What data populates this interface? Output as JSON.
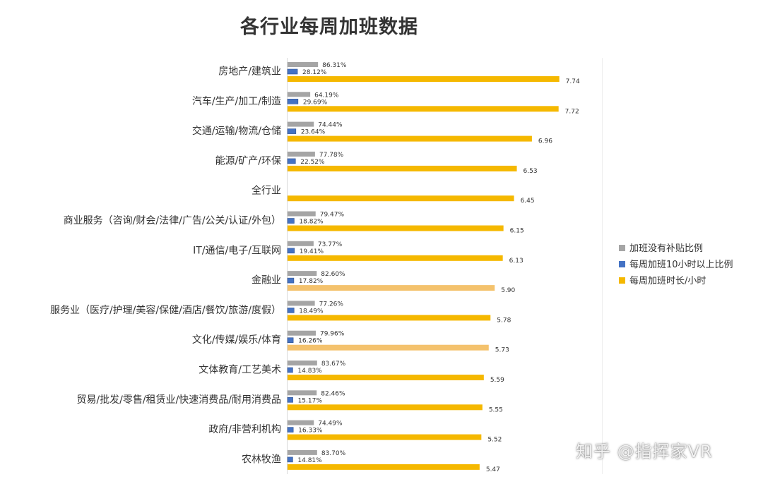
{
  "chart_data": {
    "type": "bar",
    "orientation": "horizontal",
    "title": "各行业每周加班数据",
    "categories": [
      "房地产/建筑业",
      "汽车/生产/加工/制造",
      "交通/运输/物流/仓储",
      "能源/矿产/环保",
      "全行业",
      "商业服务（咨询/财会/法律/广告/公关/认证/外包）",
      "IT/通信/电子/互联网",
      "金融业",
      "服务业（医疗/护理/美容/保健/酒店/餐饮/旅游/度假）",
      "文化/传媒/娱乐/体育",
      "文体教育/工艺美术",
      "贸易/批发/零售/租赁业/快速消费品/耐用消费品",
      "政府/非营利机构",
      "农林牧渔"
    ],
    "series": [
      {
        "name": "加班没有补贴比例",
        "color": "#a5a5a5",
        "values": [
          86.31,
          64.19,
          74.44,
          77.78,
          null,
          79.47,
          73.77,
          82.6,
          77.26,
          79.96,
          83.67,
          82.46,
          74.49,
          83.7
        ],
        "labels": [
          "86.31%",
          "64.19%",
          "74.44%",
          "77.78%",
          "",
          "79.47%",
          "73.77%",
          "82.60%",
          "77.26%",
          "79.96%",
          "83.67%",
          "82.46%",
          "74.49%",
          "83.70%"
        ]
      },
      {
        "name": "每周加班10小时以上比例",
        "color": "#4472c4",
        "values": [
          28.12,
          29.69,
          23.64,
          22.52,
          null,
          18.82,
          19.41,
          17.82,
          18.49,
          16.26,
          14.83,
          15.17,
          16.33,
          14.81
        ],
        "labels": [
          "28.12%",
          "29.69%",
          "23.64%",
          "22.52%",
          "",
          "18.82%",
          "19.41%",
          "17.82%",
          "18.49%",
          "16.26%",
          "14.83%",
          "15.17%",
          "16.33%",
          "14.81%"
        ]
      },
      {
        "name": "每周加班时长/小时",
        "color": "#f5b800",
        "highlight_color": "#f4c26d",
        "highlighted_indices": [
          7,
          9
        ],
        "values": [
          7.74,
          7.72,
          6.96,
          6.53,
          6.45,
          6.15,
          6.13,
          5.9,
          5.78,
          5.73,
          5.59,
          5.55,
          5.52,
          5.47
        ],
        "labels": [
          "7.74",
          "7.72",
          "6.96",
          "6.53",
          "6.45",
          "6.15",
          "6.13",
          "5.90",
          "5.78",
          "5.73",
          "5.59",
          "5.55",
          "5.52",
          "5.47"
        ]
      }
    ],
    "legend_position": "right",
    "grid": false
  },
  "watermark": "知乎 @指挥家VR"
}
